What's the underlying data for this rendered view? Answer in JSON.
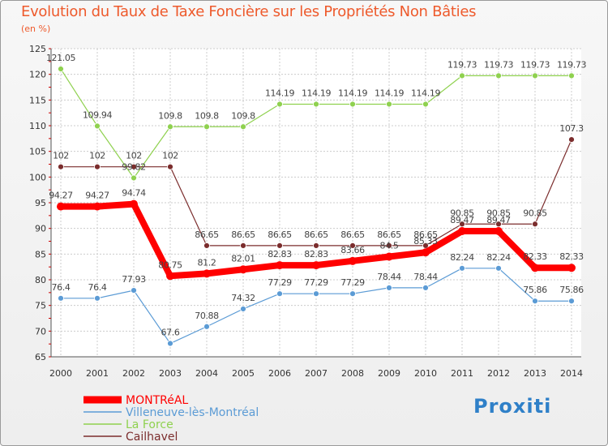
{
  "logo": {
    "text": "Proxiti"
  },
  "chart_data": {
    "type": "line",
    "title": "Evolution du Taux de Taxe Foncière sur les Propriétés Non Bâties",
    "ylabel": "(en %)",
    "xlabel": "",
    "ylim": [
      65,
      125
    ],
    "yticks": [
      65,
      70,
      75,
      80,
      85,
      90,
      95,
      100,
      105,
      110,
      115,
      120,
      125
    ],
    "categories": [
      "2000",
      "2001",
      "2002",
      "2003",
      "2004",
      "2005",
      "2006",
      "2007",
      "2008",
      "2009",
      "2010",
      "2011",
      "2012",
      "2013",
      "2014"
    ],
    "grid": true,
    "legend_position": "bottom-left",
    "series": [
      {
        "name": "MONTRéAL",
        "color": "#ff0000",
        "emphasis": true,
        "values": [
          94.27,
          94.27,
          94.74,
          80.75,
          81.2,
          82.01,
          82.83,
          82.83,
          83.66,
          84.5,
          85.33,
          89.47,
          89.47,
          82.33,
          82.33
        ],
        "labels": [
          "94.27",
          "94.27",
          "94.74",
          "80.75",
          "81.2",
          "82.01",
          "82.83",
          "82.83",
          "83.66",
          "84.5",
          "85.33",
          "89.47",
          "89.47",
          "82.33",
          "82.33"
        ]
      },
      {
        "name": "Villeneuve-lès-Montréal",
        "color": "#5b9bd5",
        "values": [
          76.4,
          76.4,
          77.93,
          67.6,
          70.88,
          74.32,
          77.29,
          77.29,
          77.29,
          78.44,
          78.44,
          82.24,
          82.24,
          75.86,
          75.86
        ],
        "labels": [
          "76.4",
          "76.4",
          "77.93",
          "67.6",
          "70.88",
          "74.32",
          "77.29",
          "77.29",
          "77.29",
          "78.44",
          "78.44",
          "82.24",
          "82.24",
          "75.86",
          "75.86"
        ]
      },
      {
        "name": "La Force",
        "color": "#8fd14f",
        "values": [
          121.05,
          109.94,
          99.82,
          109.8,
          109.8,
          109.8,
          114.19,
          114.19,
          114.19,
          114.19,
          114.19,
          119.73,
          119.73,
          119.73,
          119.73
        ],
        "labels": [
          "121.05",
          "109.94",
          "99.82",
          "109.8",
          "109.8",
          "109.8",
          "114.19",
          "114.19",
          "114.19",
          "114.19",
          "114.19",
          "119.73",
          "119.73",
          "119.73",
          "119.73"
        ]
      },
      {
        "name": "Cailhavel",
        "color": "#7b2d2d",
        "values": [
          102,
          102,
          102,
          102,
          86.65,
          86.65,
          86.65,
          86.65,
          86.65,
          86.65,
          86.65,
          90.85,
          90.85,
          90.85,
          107.3
        ],
        "labels": [
          "102",
          "102",
          "102",
          "102",
          "86.65",
          "86.65",
          "86.65",
          "86.65",
          "86.65",
          "86.65",
          "86.65",
          "90.85",
          "90.85",
          "90.85",
          "107.3"
        ]
      }
    ]
  }
}
